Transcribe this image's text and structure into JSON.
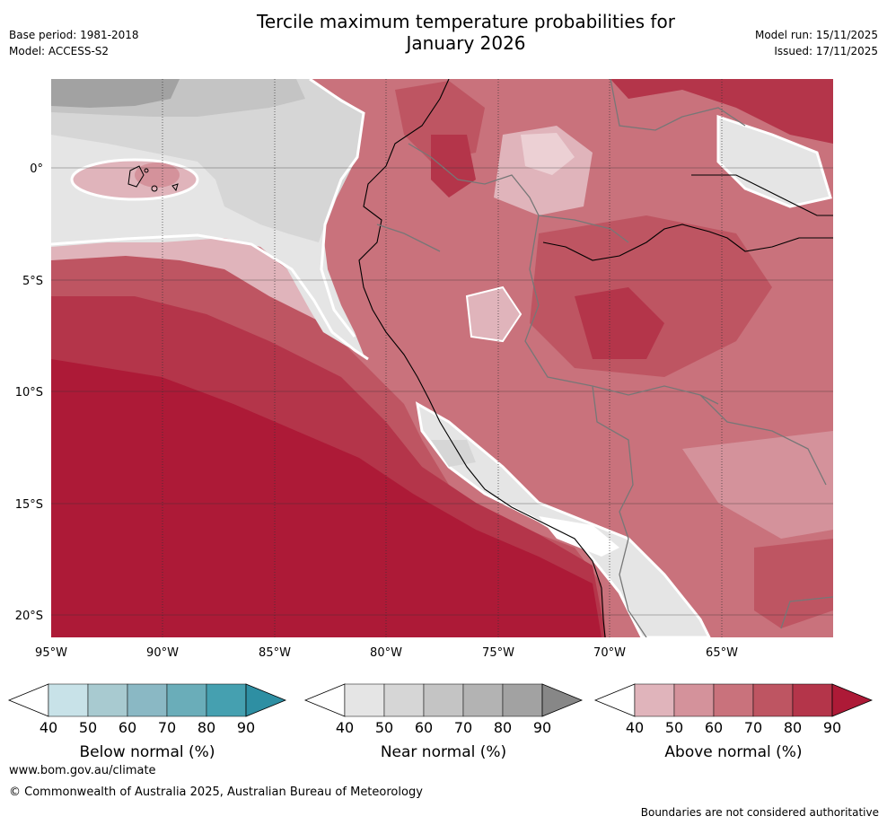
{
  "title_line1": "Tercile maximum temperature probabilities for",
  "title_line2": "January 2026",
  "meta": {
    "base_period": "Base period: 1981-2018",
    "model": "Model: ACCESS-S2",
    "model_run": "Model run: 15/11/2025",
    "issued": "Issued: 17/11/2025"
  },
  "axes": {
    "lon_labels": [
      "95°W",
      "90°W",
      "85°W",
      "80°W",
      "75°W",
      "70°W",
      "65°W"
    ],
    "lat_labels": [
      "0°",
      "5°S",
      "10°S",
      "15°S",
      "20°S"
    ]
  },
  "legends": [
    {
      "name": "Below normal (%)",
      "ticks": [
        "40",
        "50",
        "60",
        "70",
        "80",
        "90"
      ],
      "colors": [
        "#ffffff",
        "#c8e2e8",
        "#a8cad0",
        "#8ab8c4",
        "#6aadb9",
        "#45a0b0",
        "#2e8fa3"
      ]
    },
    {
      "name": "Near normal (%)",
      "ticks": [
        "40",
        "50",
        "60",
        "70",
        "80",
        "90"
      ],
      "colors": [
        "#ffffff",
        "#e5e5e5",
        "#d6d6d6",
        "#c4c4c4",
        "#b3b3b3",
        "#a2a2a2",
        "#878787"
      ]
    },
    {
      "name": "Above normal (%)",
      "ticks": [
        "40",
        "50",
        "60",
        "70",
        "80",
        "90"
      ],
      "colors": [
        "#ffffff",
        "#e0b4bb",
        "#d4929b",
        "#c9727c",
        "#be5562",
        "#b4354a",
        "#ad1a37"
      ]
    }
  ],
  "footer": {
    "url": "www.bom.gov.au/climate",
    "copyright": "© Commonwealth of Australia 2025, Australian Bureau of Meteorology",
    "disclaimer": "Boundaries are not considered authoritative"
  }
}
